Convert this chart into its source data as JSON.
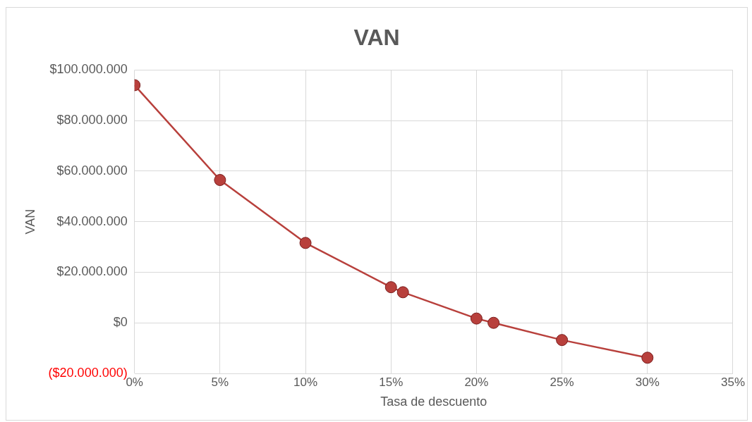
{
  "chart_data": {
    "type": "line",
    "title": "VAN",
    "xlabel": "Tasa de descuento",
    "ylabel": "VAN",
    "x": [
      0,
      5,
      10,
      15,
      15.7,
      20,
      21,
      25,
      30
    ],
    "series": [
      {
        "color": "#b8403c",
        "values": [
          94000000,
          56500000,
          31600000,
          14100000,
          12100000,
          1700000,
          0,
          -6800000,
          -13800000
        ]
      }
    ],
    "xlim": [
      0,
      35
    ],
    "xticks": [
      {
        "value": 0,
        "label": "0%"
      },
      {
        "value": 5,
        "label": "5%"
      },
      {
        "value": 10,
        "label": "10%"
      },
      {
        "value": 15,
        "label": "15%"
      },
      {
        "value": 20,
        "label": "20%"
      },
      {
        "value": 25,
        "label": "25%"
      },
      {
        "value": 30,
        "label": "30%"
      },
      {
        "value": 35,
        "label": "35%"
      }
    ],
    "ylim": [
      -20000000,
      100000000
    ],
    "yticks": [
      {
        "value": -20000000,
        "label": "($20.000.000)"
      },
      {
        "value": 0,
        "label": "$0"
      },
      {
        "value": 20000000,
        "label": "$20.000.000"
      },
      {
        "value": 40000000,
        "label": "$40.000.000"
      },
      {
        "value": 60000000,
        "label": "$60.000.000"
      },
      {
        "value": 80000000,
        "label": "$80.000.000"
      },
      {
        "value": 100000000,
        "label": "$100.000.000"
      }
    ],
    "grid": true,
    "legend": false,
    "marker": "circle",
    "line_style": "solid"
  }
}
